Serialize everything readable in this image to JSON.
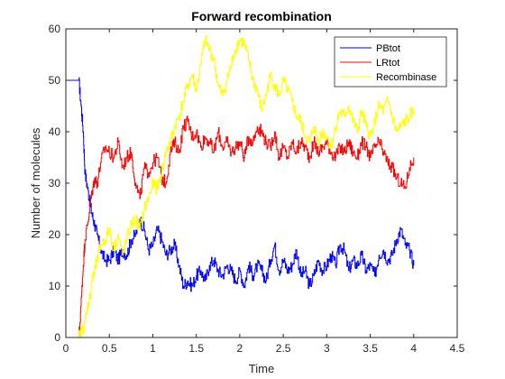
{
  "chart_data": {
    "type": "line",
    "title": "Forward recombination",
    "xlabel": "Time",
    "ylabel": "Number of molecules",
    "xlim": [
      0,
      4.5
    ],
    "ylim": [
      0,
      60
    ],
    "x_ticks": [
      "0",
      "0.5",
      "1",
      "1.5",
      "2",
      "2.5",
      "3",
      "3.5",
      "4",
      "4.5"
    ],
    "y_ticks": [
      "0",
      "10",
      "20",
      "30",
      "40",
      "50",
      "60"
    ],
    "grid": false,
    "legend_position": "top-right",
    "series": [
      {
        "name": "PBtot",
        "color": "#0000ff",
        "points": [
          [
            0,
            50
          ],
          [
            0.15,
            50
          ],
          [
            0.17,
            46
          ],
          [
            0.2,
            40
          ],
          [
            0.22,
            32
          ],
          [
            0.25,
            29
          ],
          [
            0.28,
            26
          ],
          [
            0.3,
            24
          ],
          [
            0.33,
            22
          ],
          [
            0.36,
            20
          ],
          [
            0.4,
            17
          ],
          [
            0.45,
            15
          ],
          [
            0.5,
            15
          ],
          [
            0.55,
            17
          ],
          [
            0.6,
            15
          ],
          [
            0.65,
            17
          ],
          [
            0.7,
            16
          ],
          [
            0.75,
            19
          ],
          [
            0.8,
            20
          ],
          [
            0.85,
            23
          ],
          [
            0.9,
            21
          ],
          [
            0.95,
            17
          ],
          [
            1.0,
            18
          ],
          [
            1.05,
            21
          ],
          [
            1.1,
            19
          ],
          [
            1.15,
            16
          ],
          [
            1.2,
            17
          ],
          [
            1.25,
            18
          ],
          [
            1.3,
            14
          ],
          [
            1.35,
            10
          ],
          [
            1.4,
            11
          ],
          [
            1.45,
            10
          ],
          [
            1.5,
            12
          ],
          [
            1.55,
            13
          ],
          [
            1.6,
            11
          ],
          [
            1.65,
            14
          ],
          [
            1.7,
            15
          ],
          [
            1.75,
            13
          ],
          [
            1.8,
            12
          ],
          [
            1.85,
            14
          ],
          [
            1.9,
            13
          ],
          [
            1.95,
            11
          ],
          [
            2.0,
            13
          ],
          [
            2.05,
            10
          ],
          [
            2.1,
            14
          ],
          [
            2.15,
            12
          ],
          [
            2.2,
            14
          ],
          [
            2.25,
            13
          ],
          [
            2.3,
            11
          ],
          [
            2.35,
            15
          ],
          [
            2.4,
            18
          ],
          [
            2.45,
            13
          ],
          [
            2.5,
            15
          ],
          [
            2.55,
            13
          ],
          [
            2.6,
            14
          ],
          [
            2.65,
            17
          ],
          [
            2.7,
            12
          ],
          [
            2.75,
            13
          ],
          [
            2.8,
            10
          ],
          [
            2.85,
            12
          ],
          [
            2.9,
            15
          ],
          [
            2.95,
            13
          ],
          [
            3.0,
            14
          ],
          [
            3.05,
            16
          ],
          [
            3.1,
            14
          ],
          [
            3.15,
            18
          ],
          [
            3.2,
            17
          ],
          [
            3.25,
            13
          ],
          [
            3.3,
            15
          ],
          [
            3.35,
            14
          ],
          [
            3.4,
            16
          ],
          [
            3.45,
            13
          ],
          [
            3.5,
            14
          ],
          [
            3.55,
            12
          ],
          [
            3.6,
            16
          ],
          [
            3.65,
            17
          ],
          [
            3.7,
            15
          ],
          [
            3.75,
            16
          ],
          [
            3.8,
            19
          ],
          [
            3.85,
            21
          ],
          [
            3.9,
            18
          ],
          [
            3.95,
            17
          ],
          [
            4.0,
            14
          ]
        ]
      },
      {
        "name": "LRtot",
        "color": "#ff0000",
        "points": [
          [
            0,
            0
          ],
          [
            0.15,
            0
          ],
          [
            0.18,
            8
          ],
          [
            0.2,
            14
          ],
          [
            0.22,
            19
          ],
          [
            0.25,
            22
          ],
          [
            0.28,
            26
          ],
          [
            0.3,
            28
          ],
          [
            0.33,
            31
          ],
          [
            0.36,
            30
          ],
          [
            0.4,
            34
          ],
          [
            0.45,
            37
          ],
          [
            0.5,
            36
          ],
          [
            0.55,
            35
          ],
          [
            0.6,
            38
          ],
          [
            0.65,
            33
          ],
          [
            0.7,
            35
          ],
          [
            0.75,
            36
          ],
          [
            0.8,
            30
          ],
          [
            0.85,
            27
          ],
          [
            0.9,
            33
          ],
          [
            0.95,
            32
          ],
          [
            1.0,
            34
          ],
          [
            1.05,
            35
          ],
          [
            1.1,
            31
          ],
          [
            1.15,
            30
          ],
          [
            1.2,
            36
          ],
          [
            1.25,
            38
          ],
          [
            1.3,
            36
          ],
          [
            1.35,
            41
          ],
          [
            1.4,
            42
          ],
          [
            1.45,
            39
          ],
          [
            1.5,
            40
          ],
          [
            1.55,
            37
          ],
          [
            1.6,
            39
          ],
          [
            1.65,
            38
          ],
          [
            1.7,
            36
          ],
          [
            1.75,
            40
          ],
          [
            1.8,
            37
          ],
          [
            1.85,
            38
          ],
          [
            1.9,
            36
          ],
          [
            1.95,
            37
          ],
          [
            2.0,
            38
          ],
          [
            2.05,
            35
          ],
          [
            2.1,
            39
          ],
          [
            2.15,
            38
          ],
          [
            2.2,
            41
          ],
          [
            2.25,
            40
          ],
          [
            2.3,
            38
          ],
          [
            2.35,
            37
          ],
          [
            2.4,
            40
          ],
          [
            2.45,
            35
          ],
          [
            2.5,
            37
          ],
          [
            2.55,
            35
          ],
          [
            2.6,
            38
          ],
          [
            2.65,
            36
          ],
          [
            2.7,
            38
          ],
          [
            2.75,
            37
          ],
          [
            2.8,
            35
          ],
          [
            2.85,
            38
          ],
          [
            2.9,
            36
          ],
          [
            2.95,
            37
          ],
          [
            3.0,
            38
          ],
          [
            3.05,
            36
          ],
          [
            3.1,
            35
          ],
          [
            3.15,
            37
          ],
          [
            3.2,
            36
          ],
          [
            3.25,
            38
          ],
          [
            3.3,
            36
          ],
          [
            3.35,
            35
          ],
          [
            3.4,
            38
          ],
          [
            3.45,
            37
          ],
          [
            3.5,
            35
          ],
          [
            3.55,
            37
          ],
          [
            3.6,
            38
          ],
          [
            3.65,
            36
          ],
          [
            3.7,
            34
          ],
          [
            3.75,
            33
          ],
          [
            3.8,
            31
          ],
          [
            3.85,
            30
          ],
          [
            3.9,
            29
          ],
          [
            3.95,
            33
          ],
          [
            4.0,
            35
          ]
        ]
      },
      {
        "name": "Recombinase",
        "color": "#ffff00",
        "points": [
          [
            0,
            0
          ],
          [
            0.15,
            0
          ],
          [
            0.18,
            1
          ],
          [
            0.22,
            3
          ],
          [
            0.25,
            6
          ],
          [
            0.28,
            8
          ],
          [
            0.3,
            11
          ],
          [
            0.33,
            13
          ],
          [
            0.36,
            15
          ],
          [
            0.4,
            18
          ],
          [
            0.45,
            19
          ],
          [
            0.5,
            21
          ],
          [
            0.55,
            17
          ],
          [
            0.6,
            20
          ],
          [
            0.65,
            16
          ],
          [
            0.7,
            19
          ],
          [
            0.75,
            22
          ],
          [
            0.8,
            23
          ],
          [
            0.85,
            21
          ],
          [
            0.9,
            25
          ],
          [
            0.95,
            27
          ],
          [
            1.0,
            30
          ],
          [
            1.05,
            29
          ],
          [
            1.1,
            32
          ],
          [
            1.15,
            36
          ],
          [
            1.2,
            38
          ],
          [
            1.25,
            41
          ],
          [
            1.3,
            43
          ],
          [
            1.35,
            46
          ],
          [
            1.4,
            49
          ],
          [
            1.45,
            51
          ],
          [
            1.5,
            48
          ],
          [
            1.55,
            53
          ],
          [
            1.6,
            58
          ],
          [
            1.65,
            56
          ],
          [
            1.7,
            54
          ],
          [
            1.75,
            49
          ],
          [
            1.8,
            47
          ],
          [
            1.85,
            50
          ],
          [
            1.9,
            53
          ],
          [
            1.95,
            56
          ],
          [
            2.0,
            58
          ],
          [
            2.05,
            57
          ],
          [
            2.1,
            54
          ],
          [
            2.15,
            50
          ],
          [
            2.2,
            48
          ],
          [
            2.25,
            44
          ],
          [
            2.3,
            47
          ],
          [
            2.35,
            51
          ],
          [
            2.4,
            49
          ],
          [
            2.45,
            47
          ],
          [
            2.5,
            50
          ],
          [
            2.55,
            48
          ],
          [
            2.6,
            46
          ],
          [
            2.65,
            43
          ],
          [
            2.7,
            42
          ],
          [
            2.75,
            39
          ],
          [
            2.8,
            38
          ],
          [
            2.85,
            41
          ],
          [
            2.9,
            38
          ],
          [
            2.95,
            40
          ],
          [
            3.0,
            39
          ],
          [
            3.05,
            37
          ],
          [
            3.1,
            41
          ],
          [
            3.15,
            44
          ],
          [
            3.2,
            43
          ],
          [
            3.25,
            45
          ],
          [
            3.3,
            42
          ],
          [
            3.35,
            40
          ],
          [
            3.4,
            44
          ],
          [
            3.45,
            41
          ],
          [
            3.5,
            39
          ],
          [
            3.55,
            42
          ],
          [
            3.6,
            45
          ],
          [
            3.65,
            44
          ],
          [
            3.7,
            46
          ],
          [
            3.75,
            43
          ],
          [
            3.8,
            40
          ],
          [
            3.85,
            41
          ],
          [
            3.9,
            42
          ],
          [
            3.95,
            43
          ],
          [
            4.0,
            44
          ]
        ]
      }
    ]
  }
}
